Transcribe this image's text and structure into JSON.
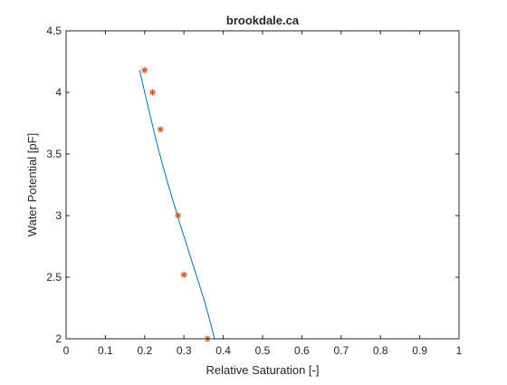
{
  "chart_data": {
    "type": "line",
    "title": "brookdale.ca",
    "xlabel": "Relative Saturation [-]",
    "ylabel": "Water Potential [pF]",
    "xlim": [
      0,
      1
    ],
    "ylim": [
      2,
      4.5
    ],
    "xticks": [
      0,
      0.1,
      0.2,
      0.3,
      0.4,
      0.5,
      0.6,
      0.7,
      0.8,
      0.9,
      1
    ],
    "xtick_labels": [
      "0",
      "0.1",
      "0.2",
      "0.3",
      "0.4",
      "0.5",
      "0.6",
      "0.7",
      "0.8",
      "0.9",
      "1"
    ],
    "yticks": [
      2,
      2.5,
      3,
      3.5,
      4,
      4.5
    ],
    "ytick_labels": [
      "2",
      "2.5",
      "3",
      "3.5",
      "4",
      "4.5"
    ],
    "grid": false,
    "series": [
      {
        "kind": "line",
        "color": "#0072BD",
        "x": [
          0.187,
          0.2,
          0.215,
          0.23,
          0.245,
          0.26,
          0.275,
          0.29,
          0.305,
          0.32,
          0.335,
          0.35,
          0.365,
          0.378
        ],
        "y": [
          4.18,
          4.0,
          3.8,
          3.6,
          3.42,
          3.25,
          3.09,
          2.93,
          2.78,
          2.63,
          2.48,
          2.33,
          2.16,
          2.0
        ]
      },
      {
        "kind": "scatter",
        "marker": "asterisk",
        "color": "#D95319",
        "x": [
          0.2,
          0.22,
          0.24,
          0.285,
          0.3,
          0.36
        ],
        "y": [
          4.18,
          4.0,
          3.7,
          3.0,
          2.52,
          2.0
        ]
      }
    ]
  },
  "colors": {
    "axis": "#262626",
    "background": "#ffffff"
  }
}
